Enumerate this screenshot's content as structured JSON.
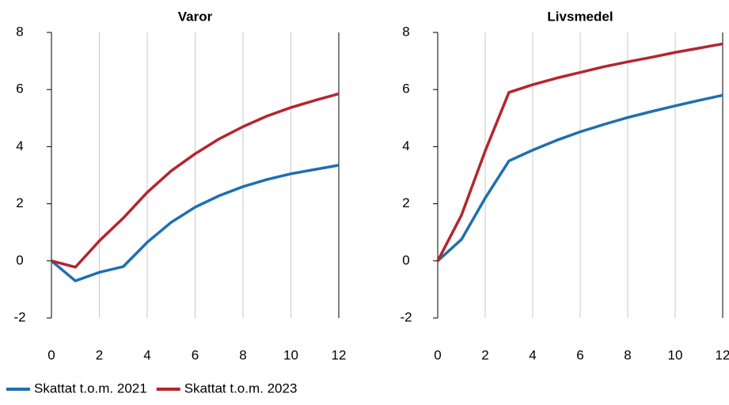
{
  "chart_data": [
    {
      "type": "line",
      "title": "Varor",
      "x": [
        0,
        1,
        2,
        3,
        4,
        5,
        6,
        7,
        8,
        9,
        10,
        11,
        12
      ],
      "series": [
        {
          "name": "Skattat t.o.m. 2021",
          "color": "#1f6fb0",
          "values": [
            0,
            -0.7,
            -0.4,
            -0.2,
            0.65,
            1.35,
            1.88,
            2.28,
            2.6,
            2.85,
            3.05,
            3.2,
            3.35
          ]
        },
        {
          "name": "Skattat t.o.m. 2023",
          "color": "#b5252f",
          "values": [
            0,
            -0.22,
            0.7,
            1.5,
            2.4,
            3.15,
            3.75,
            4.27,
            4.7,
            5.07,
            5.37,
            5.62,
            5.85
          ]
        }
      ],
      "xlim": [
        0,
        12
      ],
      "xticks": [
        0,
        2,
        4,
        6,
        8,
        10,
        12
      ],
      "ylim": [
        -2,
        8
      ],
      "yticks": [
        -2,
        0,
        2,
        4,
        6,
        8
      ],
      "grid": true
    },
    {
      "type": "line",
      "title": "Livsmedel",
      "x": [
        0,
        1,
        2,
        3,
        4,
        5,
        6,
        7,
        8,
        9,
        10,
        11,
        12
      ],
      "series": [
        {
          "name": "Skattat t.o.m. 2021",
          "color": "#1f6fb0",
          "values": [
            0,
            0.75,
            2.2,
            3.5,
            3.88,
            4.22,
            4.52,
            4.78,
            5.02,
            5.23,
            5.43,
            5.62,
            5.8
          ]
        },
        {
          "name": "Skattat t.o.m. 2023",
          "color": "#b5252f",
          "values": [
            0,
            1.6,
            3.85,
            5.9,
            6.17,
            6.4,
            6.6,
            6.8,
            6.97,
            7.13,
            7.3,
            7.45,
            7.6
          ]
        }
      ],
      "xlim": [
        0,
        12
      ],
      "xticks": [
        0,
        2,
        4,
        6,
        8,
        10,
        12
      ],
      "ylim": [
        -2,
        8
      ],
      "yticks": [
        -2,
        0,
        2,
        4,
        6,
        8
      ],
      "grid": true
    }
  ]
}
